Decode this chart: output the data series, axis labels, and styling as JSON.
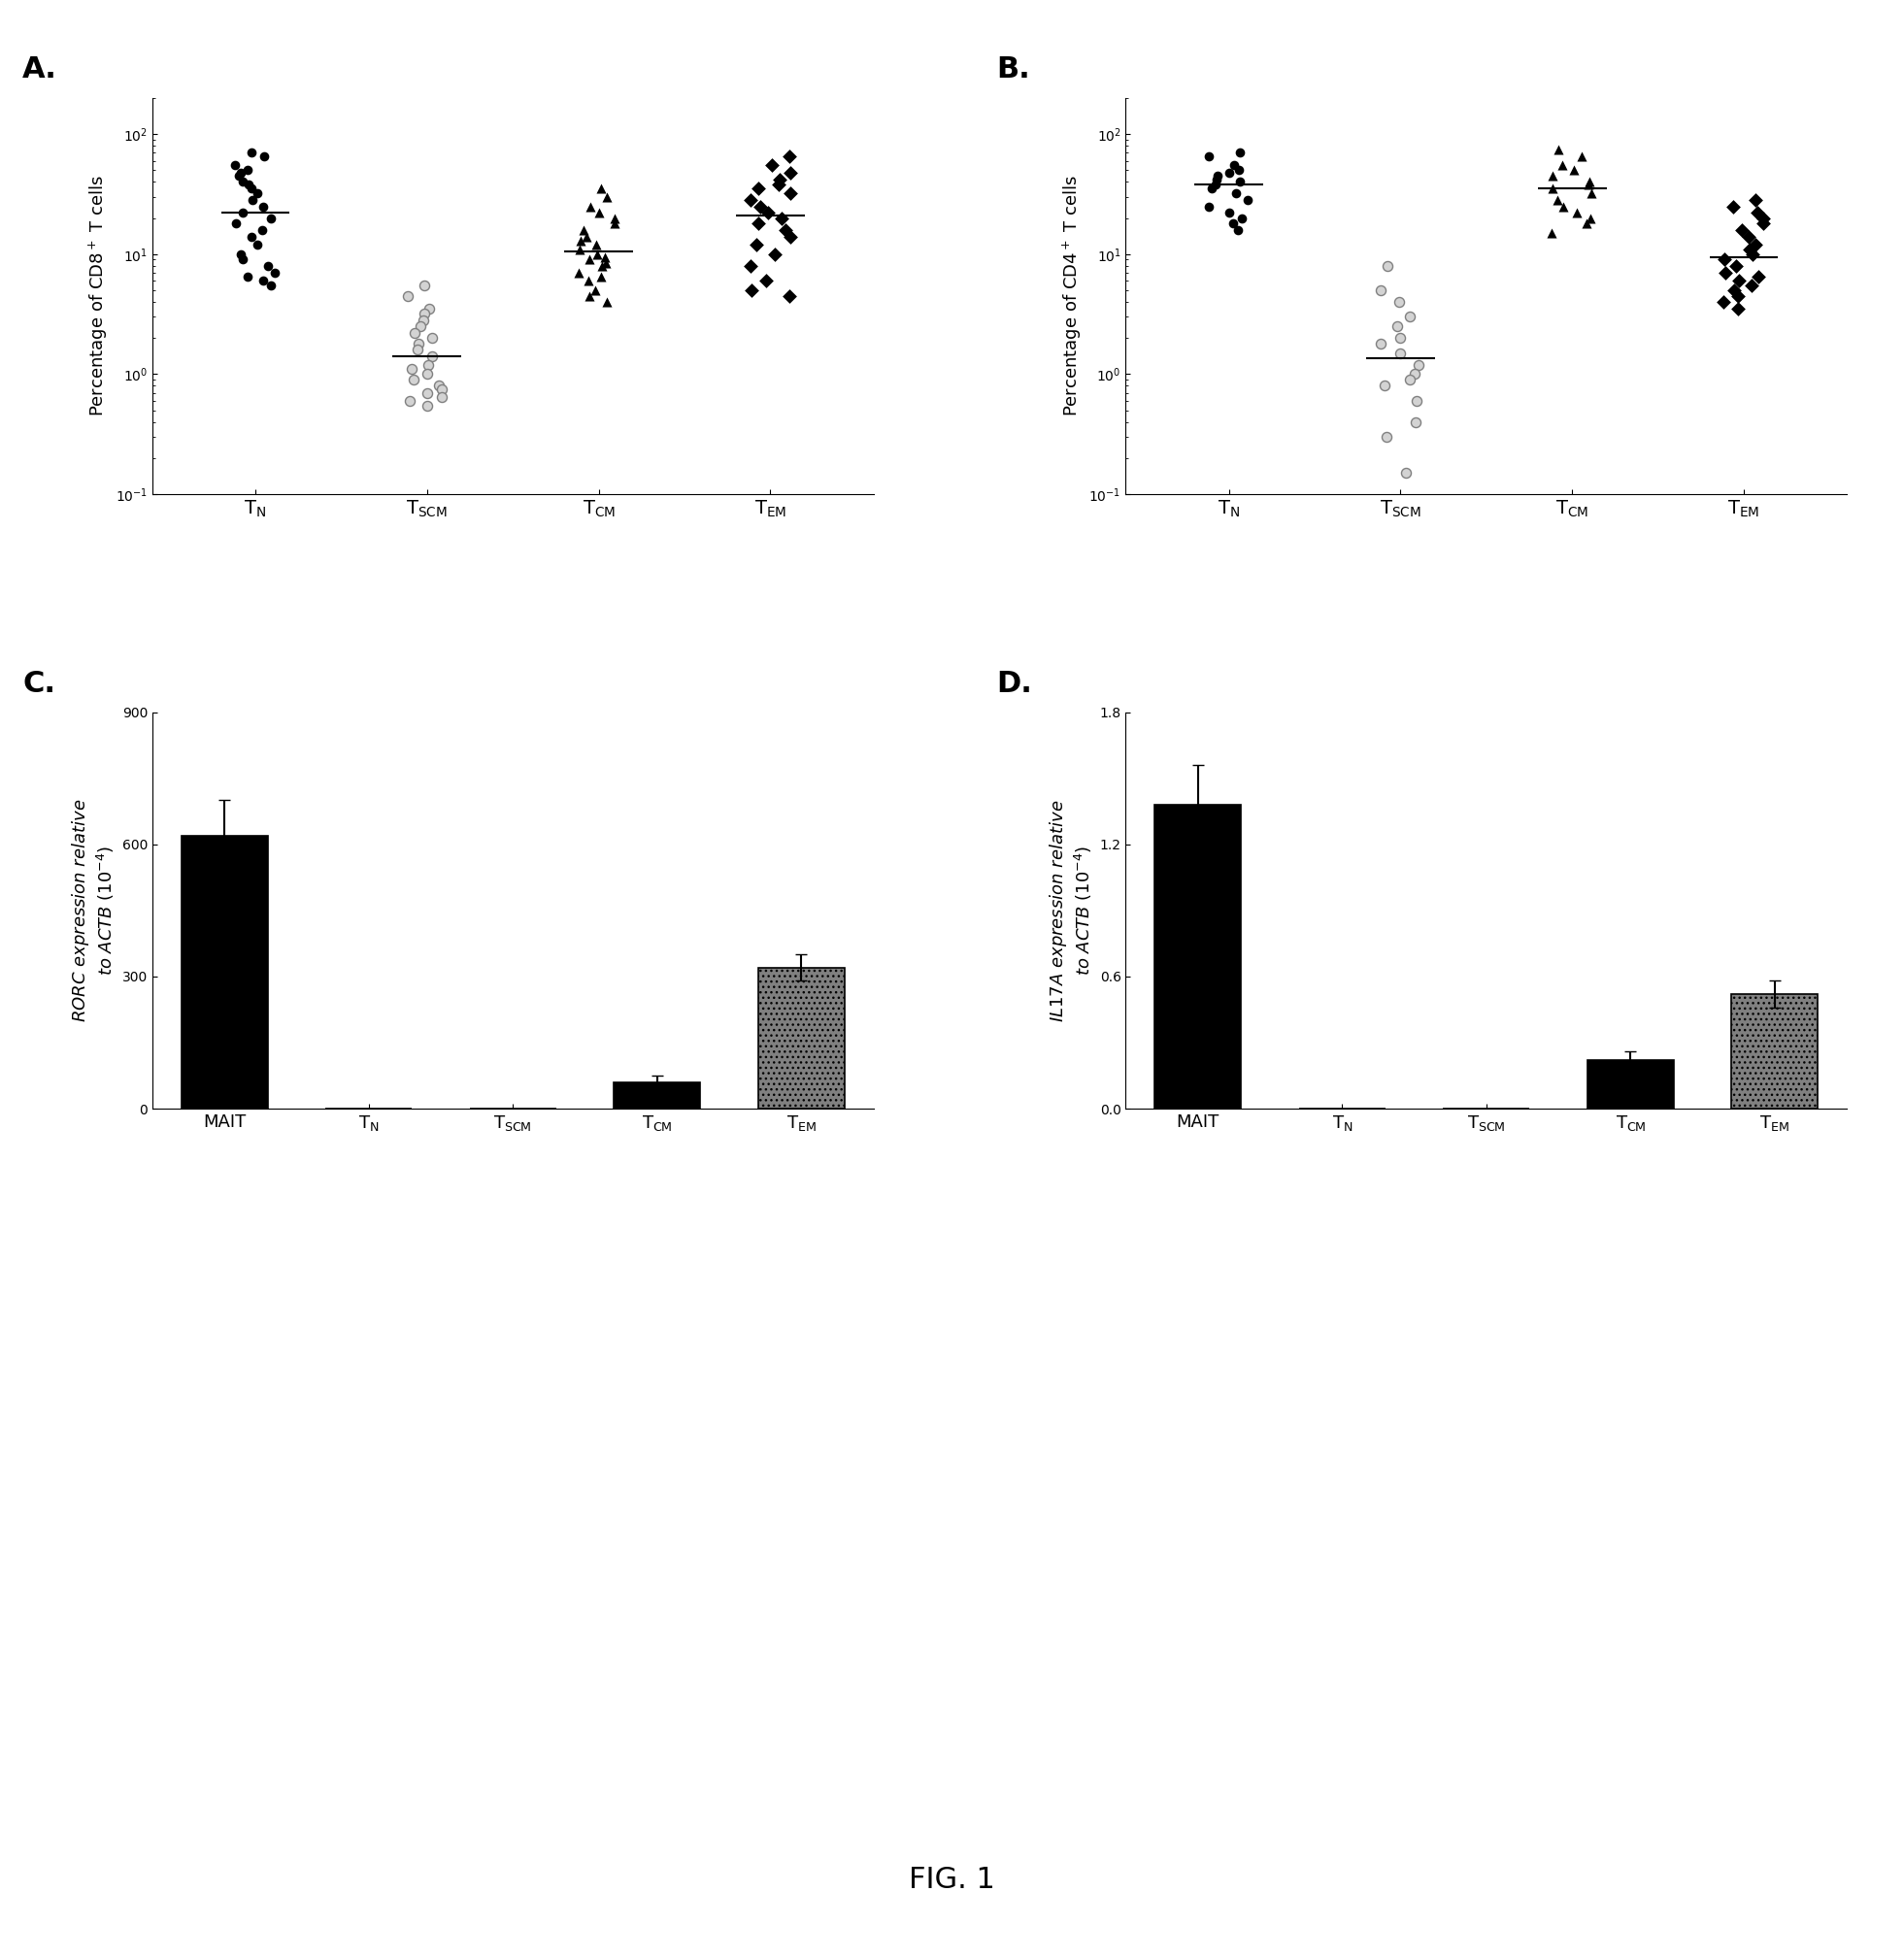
{
  "panel_A": {
    "label": "A.",
    "ylabel": "Percentage of CD8⁺ T cells",
    "categories": [
      "T_N",
      "T_SCM",
      "T_CM",
      "T_EM"
    ],
    "cat_labels": [
      "T$_\\mathrm{N}$",
      "T$_\\mathrm{SCM}$",
      "T$_\\mathrm{CM}$",
      "T$_\\mathrm{EM}$"
    ],
    "ylim": [
      0.1,
      200
    ],
    "median_TN": 22,
    "median_TSCM": 2.0,
    "median_TCM": 9.5,
    "median_TEM": 22,
    "TN_data": [
      70,
      65,
      55,
      50,
      48,
      45,
      40,
      38,
      35,
      32,
      28,
      25,
      22,
      20,
      18,
      16,
      14,
      12,
      10,
      9,
      8,
      7,
      6.5,
      6,
      5.5
    ],
    "TSCM_data": [
      5.5,
      4.5,
      3.5,
      3.2,
      2.8,
      2.5,
      2.2,
      2.0,
      1.8,
      1.6,
      1.4,
      1.2,
      1.1,
      1.0,
      0.9,
      0.8,
      0.75,
      0.7,
      0.65,
      0.6,
      0.55
    ],
    "TCM_data": [
      35,
      30,
      25,
      22,
      20,
      18,
      16,
      14,
      13,
      12,
      11,
      10,
      9.5,
      9,
      8.5,
      8,
      7,
      6.5,
      6,
      5,
      4.5,
      4
    ],
    "TEM_data": [
      65,
      55,
      48,
      42,
      38,
      35,
      32,
      28,
      25,
      22,
      20,
      18,
      16,
      14,
      12,
      10,
      8,
      6,
      5,
      4.5
    ]
  },
  "panel_B": {
    "label": "B.",
    "ylabel": "Percentage of CD4⁺ T cells",
    "categories": [
      "T_N",
      "T_SCM",
      "T_CM",
      "T_EM"
    ],
    "cat_labels": [
      "T$_\\mathrm{N}$",
      "T$_\\mathrm{SCM}$",
      "T$_\\mathrm{CM}$",
      "T$_\\mathrm{EM}$"
    ],
    "ylim": [
      0.1,
      200
    ],
    "TN_data": [
      70,
      65,
      55,
      50,
      48,
      45,
      42,
      40,
      38,
      35,
      32,
      28,
      25,
      22,
      20,
      18,
      16
    ],
    "TSCM_data": [
      8,
      5,
      4,
      3,
      2.5,
      2.0,
      1.8,
      1.5,
      1.2,
      1.0,
      0.9,
      0.8,
      0.6,
      0.4,
      0.3,
      0.15
    ],
    "TCM_data": [
      75,
      65,
      55,
      50,
      45,
      40,
      38,
      35,
      32,
      28,
      25,
      22,
      20,
      18,
      15
    ],
    "TEM_data": [
      28,
      25,
      22,
      20,
      18,
      16,
      14,
      12,
      11,
      10,
      9,
      8,
      7,
      6.5,
      6,
      5.5,
      5,
      4.5,
      4,
      3.5
    ]
  },
  "panel_C": {
    "label": "C.",
    "ylabel": "RORC expression relative\nto ACTB (10⁻⁴)",
    "categories": [
      "MAIT",
      "T$_\\mathrm{N}$",
      "T$_\\mathrm{SCM}$",
      "T$_\\mathrm{CM}$",
      "T$_\\mathrm{EM}$"
    ],
    "values": [
      620,
      0,
      0,
      60,
      320
    ],
    "errors": [
      80,
      0,
      0,
      15,
      30
    ],
    "ylim": [
      0,
      900
    ],
    "yticks": [
      0,
      300,
      600,
      900
    ]
  },
  "panel_D": {
    "label": "D.",
    "ylabel": "IL17A expression relative\nto ACTB (10⁻⁴)",
    "categories": [
      "MAIT",
      "T$_\\mathrm{N}$",
      "T$_\\mathrm{SCM}$",
      "T$_\\mathrm{CM}$",
      "T$_\\mathrm{EM}$"
    ],
    "values": [
      1.38,
      0,
      0,
      0.22,
      0.52
    ],
    "errors": [
      0.18,
      0,
      0,
      0.04,
      0.06
    ],
    "ylim": [
      0,
      1.8
    ],
    "yticks": [
      0.0,
      0.6,
      1.2,
      1.8
    ]
  },
  "figure_label": "FIG. 1",
  "bg_color": "#ffffff"
}
